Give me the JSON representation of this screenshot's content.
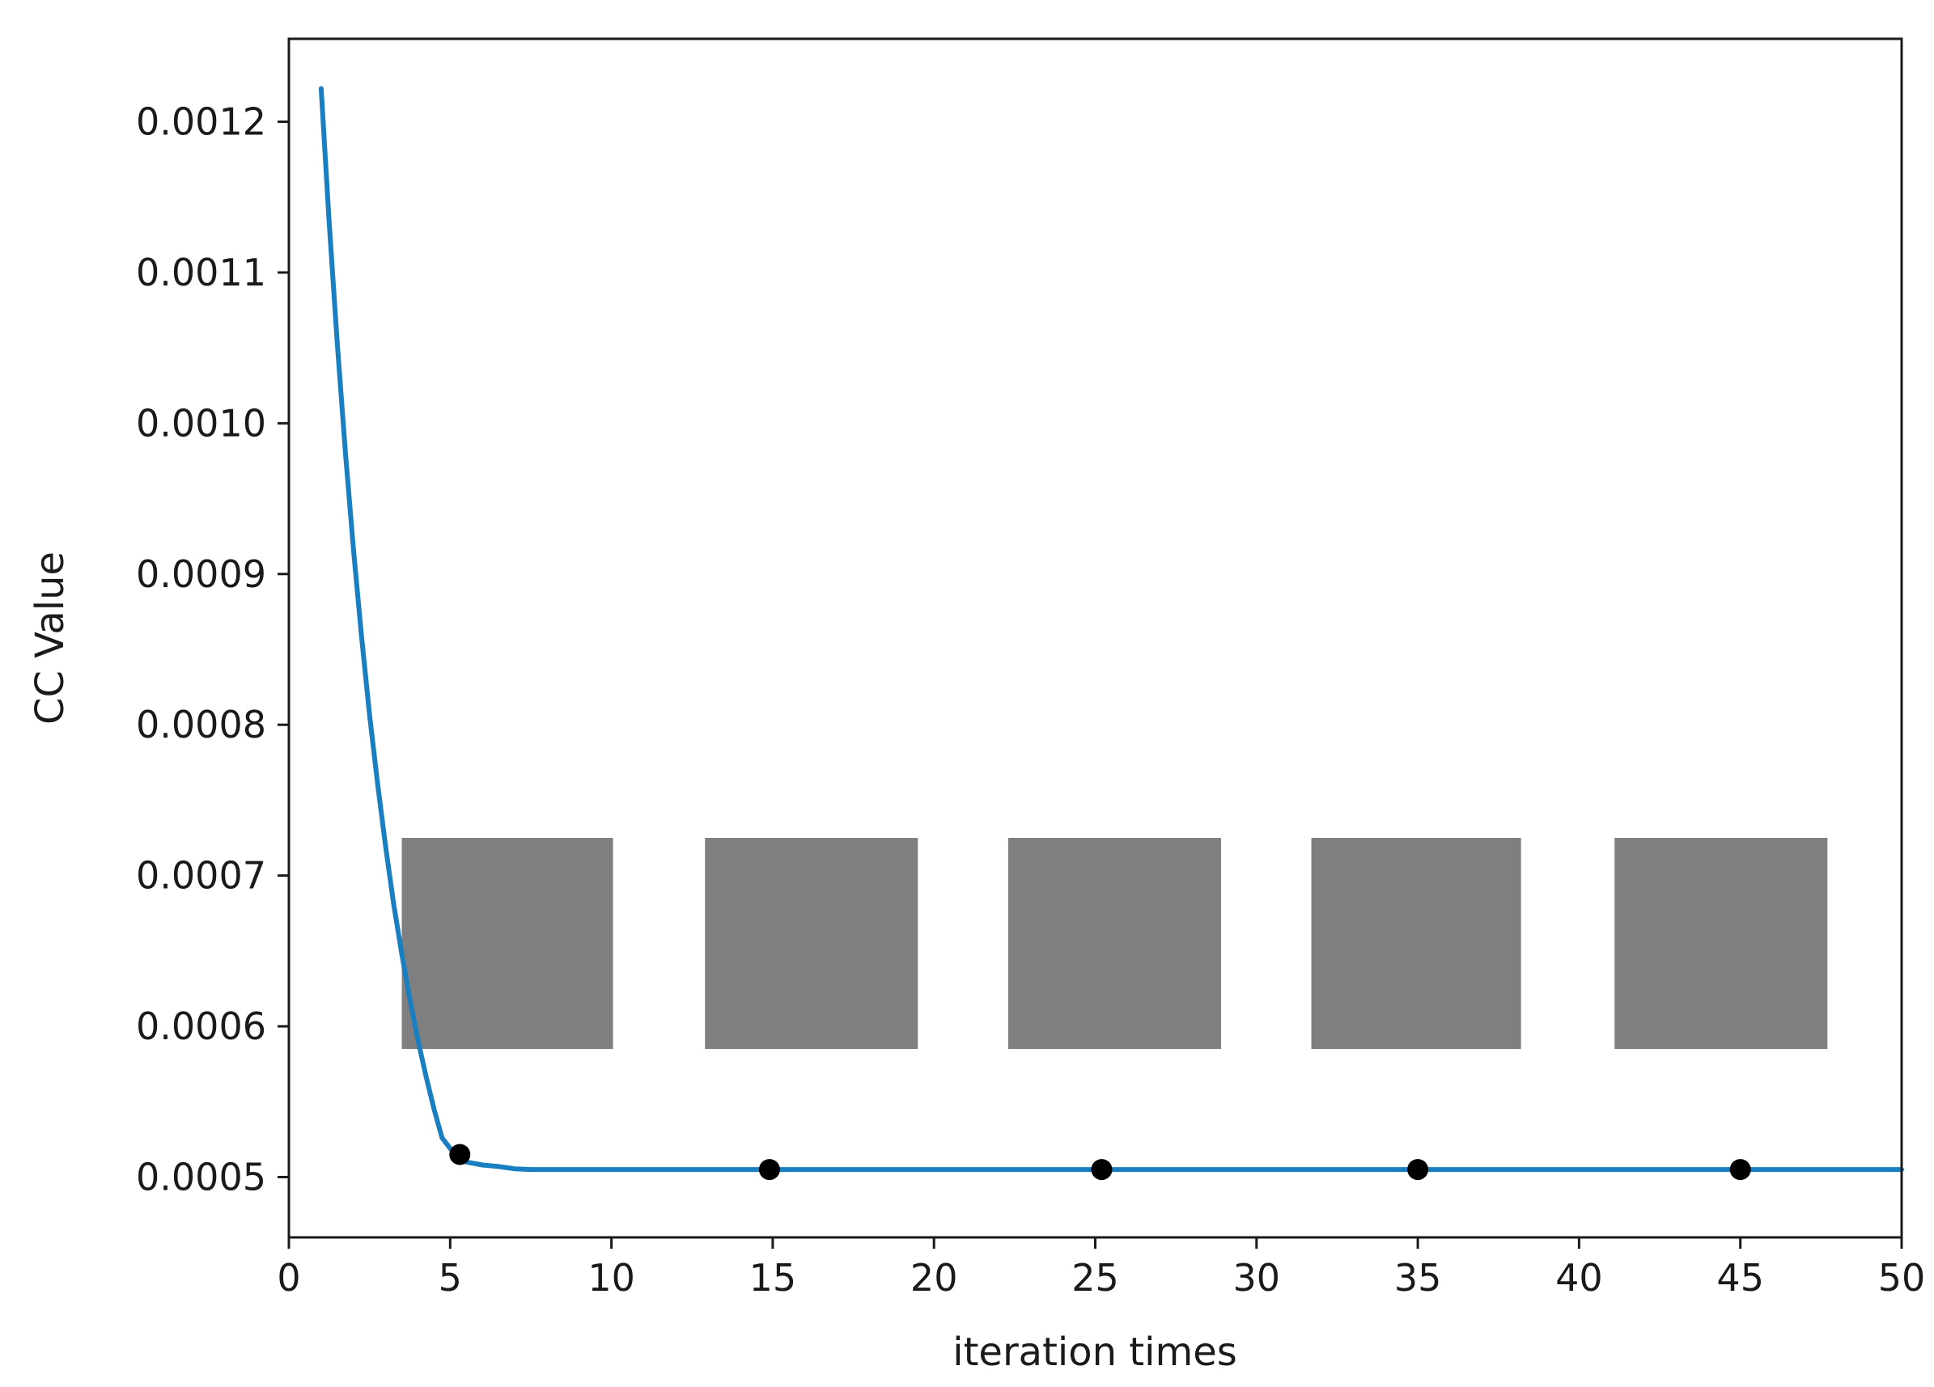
{
  "chart_data": {
    "type": "line",
    "title": "",
    "xlabel": "iteration times",
    "ylabel": "CC Value",
    "xlim": [
      0,
      50
    ],
    "ylim": [
      0.00046,
      0.001255
    ],
    "xticks": [
      0,
      5,
      10,
      15,
      20,
      25,
      30,
      35,
      40,
      45,
      50
    ],
    "xtick_labels": [
      "0",
      "5",
      "10",
      "15",
      "20",
      "25",
      "30",
      "35",
      "40",
      "45",
      "50"
    ],
    "yticks": [
      0.0005,
      0.0006,
      0.0007,
      0.0008,
      0.0009,
      0.001,
      0.0011,
      0.0012
    ],
    "ytick_labels": [
      "0.0005",
      "0.0006",
      "0.0007",
      "0.0008",
      "0.0009",
      "0.0010",
      "0.0011",
      "0.0012"
    ],
    "grid": false,
    "series": [
      {
        "color": "#1a7fc0",
        "x": [
          1,
          1.25,
          1.5,
          1.75,
          2,
          2.25,
          2.5,
          2.75,
          3,
          3.25,
          3.5,
          3.75,
          4,
          4.25,
          4.5,
          4.75,
          5,
          5.25,
          5.5,
          6,
          6.5,
          7,
          7.5,
          8,
          9,
          10,
          12,
          15,
          20,
          25,
          30,
          35,
          40,
          45,
          50
        ],
        "y": [
          0.001222,
          0.001133,
          0.001053,
          0.000981,
          0.000917,
          0.000859,
          0.000807,
          0.000761,
          0.000719,
          0.000681,
          0.000648,
          0.000618,
          0.000591,
          0.000567,
          0.000545,
          0.000526,
          0.000519,
          0.000514,
          0.00051,
          0.000508,
          0.000507,
          0.0005055,
          0.000505,
          0.000505,
          0.000505,
          0.000505,
          0.000505,
          0.000505,
          0.000505,
          0.000505,
          0.000505,
          0.000505,
          0.000505,
          0.000505,
          0.000505
        ]
      }
    ],
    "markers": {
      "color": "#000000",
      "points": [
        {
          "x": 5.3,
          "y": 0.000515
        },
        {
          "x": 14.9,
          "y": 0.000505
        },
        {
          "x": 25.2,
          "y": 0.000505
        },
        {
          "x": 35.0,
          "y": 0.000505
        },
        {
          "x": 45.0,
          "y": 0.000505
        }
      ]
    },
    "placeholder_boxes": {
      "color": "#7f7f7f",
      "y_range": [
        0.000585,
        0.000725
      ],
      "x_ranges": [
        [
          3.5,
          10.05
        ],
        [
          12.9,
          19.5
        ],
        [
          22.3,
          28.9
        ],
        [
          31.7,
          38.2
        ],
        [
          41.1,
          47.7
        ]
      ]
    }
  }
}
